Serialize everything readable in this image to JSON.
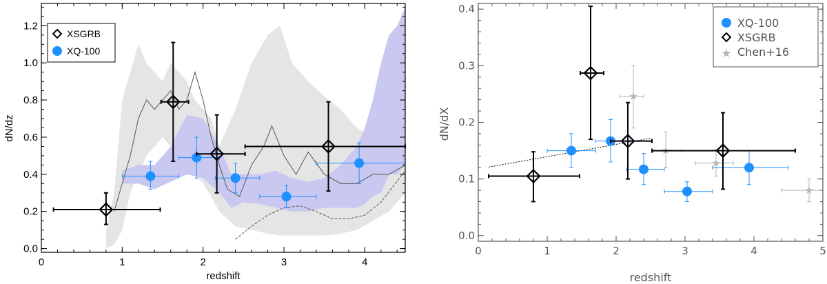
{
  "chart_data": [
    {
      "type": "scatter",
      "xlabel": "redshift",
      "ylabel": "dN/dz",
      "xlim": [
        0,
        4.5
      ],
      "ylim": [
        -0.02,
        1.32
      ],
      "xticks": [
        "0",
        "1",
        "2",
        "3",
        "4"
      ],
      "yticks": [
        "0.0",
        "0.2",
        "0.4",
        "0.6",
        "0.8",
        "1.0",
        "1.2"
      ],
      "legend_position": "top-left",
      "series": [
        {
          "name": "XSGRB",
          "marker": "diamond",
          "color": "#000000",
          "points": [
            {
              "x": 0.8,
              "y": 0.21,
              "xlo": 0.15,
              "xhi": 1.47,
              "ylo": 0.13,
              "yhi": 0.3
            },
            {
              "x": 1.63,
              "y": 0.79,
              "xlo": 1.48,
              "xhi": 1.82,
              "ylo": 0.47,
              "yhi": 1.11
            },
            {
              "x": 2.17,
              "y": 0.51,
              "xlo": 1.92,
              "xhi": 2.52,
              "ylo": 0.3,
              "yhi": 0.72
            },
            {
              "x": 3.55,
              "y": 0.55,
              "xlo": 2.52,
              "xhi": 4.5,
              "ylo": 0.31,
              "yhi": 0.79
            }
          ]
        },
        {
          "name": "XQ-100",
          "marker": "circle",
          "color": "#1e90ff",
          "points": [
            {
              "x": 1.35,
              "y": 0.39,
              "xlo": 1.0,
              "xhi": 1.7,
              "ylo": 0.32,
              "yhi": 0.47
            },
            {
              "x": 1.92,
              "y": 0.49,
              "xlo": 1.7,
              "xhi": 2.2,
              "ylo": 0.38,
              "yhi": 0.6
            },
            {
              "x": 2.4,
              "y": 0.38,
              "xlo": 2.15,
              "xhi": 2.7,
              "ylo": 0.3,
              "yhi": 0.46
            },
            {
              "x": 3.03,
              "y": 0.28,
              "xlo": 2.7,
              "xhi": 3.4,
              "ylo": 0.22,
              "yhi": 0.34
            },
            {
              "x": 3.93,
              "y": 0.46,
              "xlo": 3.4,
              "xhi": 4.5,
              "ylo": 0.35,
              "yhi": 0.57
            }
          ]
        }
      ],
      "bands": [
        {
          "color": "#e5e5e5",
          "x": [
            0.8,
            0.9,
            1.0,
            1.1,
            1.2,
            1.3,
            1.4,
            1.5,
            1.6,
            1.7,
            1.8,
            1.9,
            2.0,
            2.1,
            2.2,
            2.4,
            2.6,
            2.8,
            2.95,
            3.1,
            3.3,
            3.5,
            3.7,
            3.9,
            4.1,
            4.3,
            4.5
          ],
          "low": [
            0.0,
            0.02,
            0.1,
            0.3,
            0.4,
            0.5,
            0.55,
            0.6,
            0.55,
            0.5,
            0.45,
            0.4,
            0.35,
            0.28,
            0.2,
            0.12,
            0.1,
            0.08,
            0.07,
            0.07,
            0.07,
            0.07,
            0.08,
            0.1,
            0.15,
            0.2,
            0.3
          ],
          "high": [
            0.1,
            0.3,
            0.8,
            0.95,
            1.1,
            1.0,
            0.95,
            0.9,
            1.0,
            0.95,
            0.9,
            0.8,
            0.75,
            0.7,
            0.55,
            0.75,
            1.0,
            1.15,
            1.2,
            1.0,
            0.9,
            0.82,
            0.75,
            0.65,
            0.6,
            0.55,
            0.55
          ]
        },
        {
          "color": "#c8c8f0",
          "x": [
            1.0,
            1.2,
            1.4,
            1.6,
            1.8,
            2.0,
            2.2,
            2.35,
            2.5,
            2.7,
            2.9,
            3.1,
            3.3,
            3.5,
            3.7,
            3.9,
            4.0,
            4.1,
            4.2,
            4.3,
            4.4,
            4.5
          ],
          "low": [
            0.35,
            0.35,
            0.32,
            0.36,
            0.4,
            0.38,
            0.3,
            0.22,
            0.25,
            0.24,
            0.22,
            0.2,
            0.2,
            0.22,
            0.22,
            0.22,
            0.24,
            0.28,
            0.3,
            0.4,
            0.4,
            0.45
          ],
          "high": [
            0.42,
            0.45,
            0.45,
            0.55,
            0.72,
            0.7,
            0.55,
            0.4,
            0.4,
            0.4,
            0.42,
            0.38,
            0.36,
            0.38,
            0.45,
            0.55,
            0.65,
            0.8,
            1.0,
            1.15,
            1.2,
            1.3
          ]
        }
      ],
      "curves": [
        {
          "color": "#555555",
          "x": [
            0.9,
            1.0,
            1.1,
            1.2,
            1.3,
            1.4,
            1.5,
            1.6,
            1.7,
            1.8,
            1.9,
            2.0,
            2.1,
            2.2,
            2.3,
            2.45,
            2.6,
            2.75,
            2.85,
            3.0,
            3.15,
            3.3,
            3.5,
            3.7,
            3.9,
            4.1,
            4.3,
            4.5
          ],
          "y": [
            0.2,
            0.35,
            0.5,
            0.7,
            0.8,
            0.75,
            0.8,
            0.85,
            0.75,
            0.8,
            0.95,
            0.8,
            0.6,
            0.45,
            0.32,
            0.28,
            0.45,
            0.55,
            0.66,
            0.5,
            0.4,
            0.52,
            0.4,
            0.35,
            0.35,
            0.4,
            0.4,
            0.45
          ]
        },
        {
          "color": "#555555",
          "x": [
            2.4,
            2.6,
            2.8,
            3.0,
            3.2,
            3.4,
            3.6,
            3.8,
            4.0,
            4.2,
            4.5
          ],
          "y": [
            0.05,
            0.12,
            0.18,
            0.22,
            0.23,
            0.2,
            0.16,
            0.16,
            0.18,
            0.25,
            0.42
          ]
        }
      ]
    },
    {
      "type": "scatter",
      "xlabel": "redshift",
      "ylabel": "dN/dX",
      "xlim": [
        0,
        5
      ],
      "ylim": [
        -0.01,
        0.41
      ],
      "xticks": [
        "0",
        "1",
        "2",
        "3",
        "4",
        "5"
      ],
      "yticks": [
        "0.0",
        "0.1",
        "0.2",
        "0.3",
        "0.4"
      ],
      "legend_position": "top-right",
      "series": [
        {
          "name": "XQ-100",
          "marker": "circle",
          "color": "#1e90ff",
          "points": [
            {
              "x": 1.35,
              "y": 0.15,
              "xlo": 1.0,
              "xhi": 1.7,
              "ylo": 0.12,
              "yhi": 0.18
            },
            {
              "x": 1.92,
              "y": 0.167,
              "xlo": 1.7,
              "xhi": 2.2,
              "ylo": 0.13,
              "yhi": 0.205
            },
            {
              "x": 2.4,
              "y": 0.117,
              "xlo": 2.15,
              "xhi": 2.7,
              "ylo": 0.09,
              "yhi": 0.145
            },
            {
              "x": 3.03,
              "y": 0.078,
              "xlo": 2.7,
              "xhi": 3.4,
              "ylo": 0.06,
              "yhi": 0.095
            },
            {
              "x": 3.93,
              "y": 0.12,
              "xlo": 3.4,
              "xhi": 4.5,
              "ylo": 0.09,
              "yhi": 0.15
            }
          ]
        },
        {
          "name": "XSGRB",
          "marker": "diamond",
          "color": "#000000",
          "points": [
            {
              "x": 0.8,
              "y": 0.105,
              "xlo": 0.15,
              "xhi": 1.47,
              "ylo": 0.06,
              "yhi": 0.148
            },
            {
              "x": 1.63,
              "y": 0.287,
              "xlo": 1.48,
              "xhi": 1.82,
              "ylo": 0.17,
              "yhi": 0.405
            },
            {
              "x": 2.17,
              "y": 0.167,
              "xlo": 1.92,
              "xhi": 2.52,
              "ylo": 0.1,
              "yhi": 0.235
            },
            {
              "x": 3.55,
              "y": 0.15,
              "xlo": 2.52,
              "xhi": 4.6,
              "ylo": 0.082,
              "yhi": 0.217
            }
          ]
        },
        {
          "name": "Chen+16",
          "marker": "star",
          "color": "#b4b4b4",
          "points": [
            {
              "x": 2.25,
              "y": 0.246,
              "xlo": 2.05,
              "xhi": 2.4,
              "ylo": 0.19,
              "yhi": 0.3
            },
            {
              "x": 2.72,
              "y": 0.15,
              "xlo": 2.55,
              "xhi": 2.95,
              "ylo": 0.12,
              "yhi": 0.183
            },
            {
              "x": 3.45,
              "y": 0.128,
              "xlo": 3.15,
              "xhi": 3.7,
              "ylo": 0.105,
              "yhi": 0.152
            },
            {
              "x": 4.8,
              "y": 0.08,
              "xlo": 4.4,
              "xhi": 5.0,
              "ylo": 0.06,
              "yhi": 0.1
            }
          ]
        }
      ],
      "fit_line": {
        "color": "#000000",
        "x": [
          0.15,
          2.5
        ],
        "y": [
          0.121,
          0.172
        ]
      }
    }
  ]
}
